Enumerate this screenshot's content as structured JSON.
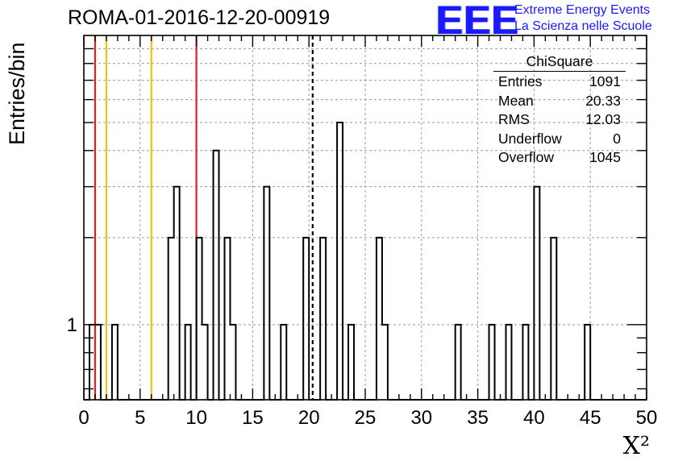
{
  "header": {
    "run_title": "ROMA-01-2016-12-20-00919",
    "logo_mark": "EEE",
    "logo_line1": "Extreme Energy Events",
    "logo_line2": "La Scienza nelle Scuole",
    "logo_color": "#1a1aff"
  },
  "stats_box": {
    "title": "ChiSquare",
    "rows": [
      {
        "label": "Entries",
        "value": "1091"
      },
      {
        "label": "Mean",
        "value": "20.33"
      },
      {
        "label": "RMS",
        "value": "12.03"
      },
      {
        "label": "Underflow",
        "value": "0"
      },
      {
        "label": "Overflow",
        "value": "1045"
      }
    ]
  },
  "chart_data": {
    "type": "bar",
    "histogram_style": "step",
    "title": "ROMA-01-2016-12-20-00919",
    "xlabel": "X²",
    "ylabel": "Entries/bin",
    "xlim": [
      0,
      50
    ],
    "ylim": [
      0.55,
      10
    ],
    "y_scale": "log",
    "bin_width": 0.5,
    "grid": true,
    "x_ticks": [
      0,
      5,
      10,
      15,
      20,
      25,
      30,
      35,
      40,
      45,
      50
    ],
    "y_tick_labels": [
      {
        "value": 1,
        "label": "1"
      }
    ],
    "bins": [
      {
        "x": 0.5,
        "count": 1
      },
      {
        "x": 1.0,
        "count": 1
      },
      {
        "x": 2.5,
        "count": 1
      },
      {
        "x": 7.5,
        "count": 2
      },
      {
        "x": 8.0,
        "count": 3
      },
      {
        "x": 9.0,
        "count": 1
      },
      {
        "x": 10.0,
        "count": 2
      },
      {
        "x": 10.5,
        "count": 1
      },
      {
        "x": 11.5,
        "count": 4
      },
      {
        "x": 12.5,
        "count": 2
      },
      {
        "x": 13.0,
        "count": 1
      },
      {
        "x": 16.0,
        "count": 3
      },
      {
        "x": 17.5,
        "count": 1
      },
      {
        "x": 19.5,
        "count": 2
      },
      {
        "x": 21.0,
        "count": 2
      },
      {
        "x": 22.5,
        "count": 5
      },
      {
        "x": 23.5,
        "count": 1
      },
      {
        "x": 26.0,
        "count": 2
      },
      {
        "x": 26.5,
        "count": 1
      },
      {
        "x": 33.0,
        "count": 1
      },
      {
        "x": 36.0,
        "count": 1
      },
      {
        "x": 37.5,
        "count": 1
      },
      {
        "x": 39.0,
        "count": 1
      },
      {
        "x": 40.0,
        "count": 3
      },
      {
        "x": 41.5,
        "count": 2
      },
      {
        "x": 44.5,
        "count": 1
      }
    ],
    "reference_lines": [
      {
        "x": 1,
        "color": "#e0201e",
        "style": "solid"
      },
      {
        "x": 10,
        "color": "#e0201e",
        "style": "solid"
      },
      {
        "x": 2,
        "color": "#f2c01a",
        "style": "solid"
      },
      {
        "x": 6,
        "color": "#f2c01a",
        "style": "solid"
      },
      {
        "x": 20.33,
        "color": "#000000",
        "style": "dashed"
      }
    ],
    "colors": {
      "histogram": "#000000",
      "grid": "#9a9a9a"
    }
  }
}
